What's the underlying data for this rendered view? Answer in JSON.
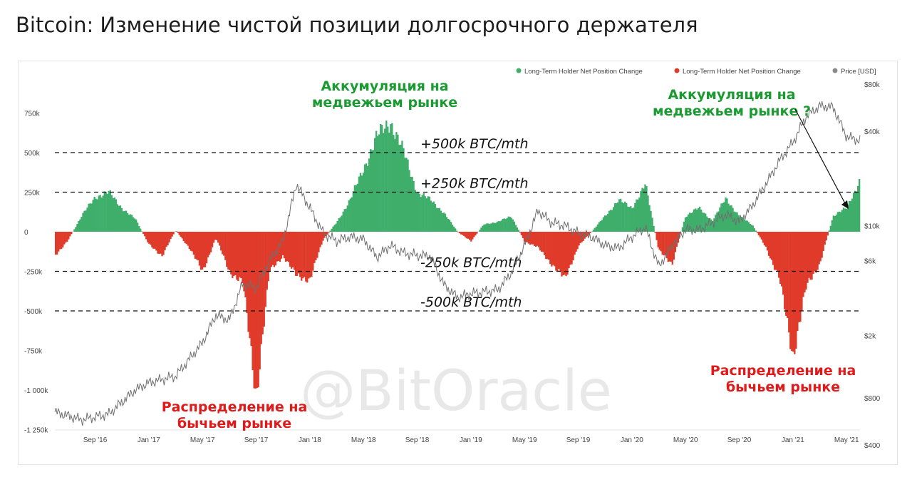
{
  "page": {
    "title": "Bitcoin: Изменение чистой позиции долгосрочного держателя"
  },
  "watermark": "@BitOracle",
  "colors": {
    "positive": "#3fae6b",
    "negative": "#e03b2a",
    "price": "#8a8a8a",
    "accum_text": "#1c9a32",
    "distrib_text": "#e01a1a"
  },
  "chart_data": {
    "type": "bar",
    "legend": [
      {
        "name": "Long-Term Holder Net Position Change",
        "color": "#3fae6b"
      },
      {
        "name": "Long-Term Holder Net Position Change",
        "color": "#e03b2a"
      },
      {
        "name": "Price [USD]",
        "color": "#8a8a8a"
      }
    ],
    "legend_position": "top-right",
    "y_left_ticks": [
      "750k",
      "500k",
      "250k",
      "0",
      "-250k",
      "-500k",
      "-750k",
      "-1 000k",
      "-1 250k"
    ],
    "y_left_range": [
      -1250000,
      750000
    ],
    "y_right_ticks": [
      "$80k",
      "$40k",
      "$10k",
      "$6k",
      "$2k",
      "$800",
      "$400"
    ],
    "y_right_scale": "log",
    "x_ticks": [
      "Sep '16",
      "Jan '17",
      "May '17",
      "Sep '17",
      "Jan '18",
      "May '18",
      "Sep '18",
      "Jan '19",
      "May '19",
      "Sep '19",
      "Jan '20",
      "May '20",
      "Sep '20",
      "Jan '21",
      "May '21"
    ],
    "x_range": [
      "2016-06",
      "2021-06"
    ],
    "net_position_keypoints": [
      [
        "2016-06",
        -150000
      ],
      [
        "2016-07",
        -50000
      ],
      [
        "2016-08",
        100000
      ],
      [
        "2016-09",
        220000
      ],
      [
        "2016-10",
        250000
      ],
      [
        "2016-11",
        150000
      ],
      [
        "2016-12",
        80000
      ],
      [
        "2017-01",
        -80000
      ],
      [
        "2017-02",
        -150000
      ],
      [
        "2017-03",
        10000
      ],
      [
        "2017-04",
        -100000
      ],
      [
        "2017-05",
        -250000
      ],
      [
        "2017-06",
        -40000
      ],
      [
        "2017-07",
        -250000
      ],
      [
        "2017-08",
        -320000
      ],
      [
        "2017-09",
        -1030000
      ],
      [
        "2017-10",
        -250000
      ],
      [
        "2017-11",
        -150000
      ],
      [
        "2017-12",
        -280000
      ],
      [
        "2018-01",
        -300000
      ],
      [
        "2018-02",
        -50000
      ],
      [
        "2018-03",
        60000
      ],
      [
        "2018-04",
        200000
      ],
      [
        "2018-05",
        400000
      ],
      [
        "2018-06",
        600000
      ],
      [
        "2018-07",
        700000
      ],
      [
        "2018-08",
        500000
      ],
      [
        "2018-09",
        250000
      ],
      [
        "2018-10",
        200000
      ],
      [
        "2018-11",
        120000
      ],
      [
        "2018-12",
        0
      ],
      [
        "2019-01",
        -60000
      ],
      [
        "2019-02",
        50000
      ],
      [
        "2019-03",
        60000
      ],
      [
        "2019-04",
        100000
      ],
      [
        "2019-05",
        -60000
      ],
      [
        "2019-06",
        -100000
      ],
      [
        "2019-07",
        -200000
      ],
      [
        "2019-08",
        -300000
      ],
      [
        "2019-09",
        -90000
      ],
      [
        "2019-10",
        0
      ],
      [
        "2019-11",
        100000
      ],
      [
        "2019-12",
        200000
      ],
      [
        "2020-01",
        150000
      ],
      [
        "2020-02",
        300000
      ],
      [
        "2020-03",
        -120000
      ],
      [
        "2020-04",
        -200000
      ],
      [
        "2020-05",
        100000
      ],
      [
        "2020-06",
        150000
      ],
      [
        "2020-07",
        70000
      ],
      [
        "2020-08",
        210000
      ],
      [
        "2020-09",
        100000
      ],
      [
        "2020-10",
        40000
      ],
      [
        "2020-11",
        -100000
      ],
      [
        "2020-12",
        -300000
      ],
      [
        "2021-01",
        -780000
      ],
      [
        "2021-02",
        -350000
      ],
      [
        "2021-03",
        -200000
      ],
      [
        "2021-04",
        100000
      ],
      [
        "2021-05",
        150000
      ],
      [
        "2021-06",
        330000
      ]
    ],
    "price_keypoints_usd": [
      [
        "2016-06",
        650
      ],
      [
        "2016-08",
        580
      ],
      [
        "2016-10",
        630
      ],
      [
        "2016-12",
        900
      ],
      [
        "2017-01",
        1000
      ],
      [
        "2017-03",
        1100
      ],
      [
        "2017-05",
        1800
      ],
      [
        "2017-06",
        2700
      ],
      [
        "2017-07",
        2500
      ],
      [
        "2017-08",
        4300
      ],
      [
        "2017-09",
        4000
      ],
      [
        "2017-10",
        6000
      ],
      [
        "2017-11",
        8000
      ],
      [
        "2017-12",
        18500
      ],
      [
        "2018-01",
        13000
      ],
      [
        "2018-02",
        9000
      ],
      [
        "2018-03",
        8000
      ],
      [
        "2018-04",
        8500
      ],
      [
        "2018-05",
        8200
      ],
      [
        "2018-06",
        6300
      ],
      [
        "2018-07",
        7500
      ],
      [
        "2018-08",
        6700
      ],
      [
        "2018-09",
        6500
      ],
      [
        "2018-10",
        6400
      ],
      [
        "2018-11",
        4200
      ],
      [
        "2018-12",
        3500
      ],
      [
        "2019-01",
        3700
      ],
      [
        "2019-03",
        3900
      ],
      [
        "2019-04",
        5000
      ],
      [
        "2019-05",
        7500
      ],
      [
        "2019-06",
        12500
      ],
      [
        "2019-07",
        10500
      ],
      [
        "2019-08",
        10000
      ],
      [
        "2019-09",
        9000
      ],
      [
        "2019-10",
        8500
      ],
      [
        "2019-11",
        7500
      ],
      [
        "2019-12",
        7200
      ],
      [
        "2020-01",
        8500
      ],
      [
        "2020-02",
        9800
      ],
      [
        "2020-03",
        5500
      ],
      [
        "2020-04",
        7500
      ],
      [
        "2020-05",
        9500
      ],
      [
        "2020-06",
        9400
      ],
      [
        "2020-07",
        10500
      ],
      [
        "2020-08",
        11800
      ],
      [
        "2020-09",
        10600
      ],
      [
        "2020-10",
        13500
      ],
      [
        "2020-11",
        18500
      ],
      [
        "2020-12",
        26000
      ],
      [
        "2021-01",
        34000
      ],
      [
        "2021-02",
        50000
      ],
      [
        "2021-03",
        58000
      ],
      [
        "2021-04",
        57000
      ],
      [
        "2021-05",
        37000
      ],
      [
        "2021-06",
        35000
      ]
    ],
    "reference_lines": [
      {
        "value": 500000,
        "label": "+500k BTC/mth"
      },
      {
        "value": 250000,
        "label": "+250k BTC/mth"
      },
      {
        "value": -250000,
        "label": "-250k BTC/mth"
      },
      {
        "value": -500000,
        "label": "-500k BTC/mth"
      }
    ],
    "annotations": [
      {
        "lines": [
          "Аккумуляция на",
          "медвежьем рынке"
        ],
        "type": "accum"
      },
      {
        "lines": [
          "Аккумуляция на",
          "медвежьем рынке ?"
        ],
        "type": "accum"
      },
      {
        "lines": [
          "Распределение на",
          "бычьем рынке"
        ],
        "type": "distrib"
      },
      {
        "lines": [
          "Распределение на",
          "бычьем рынке"
        ],
        "type": "distrib"
      }
    ]
  }
}
